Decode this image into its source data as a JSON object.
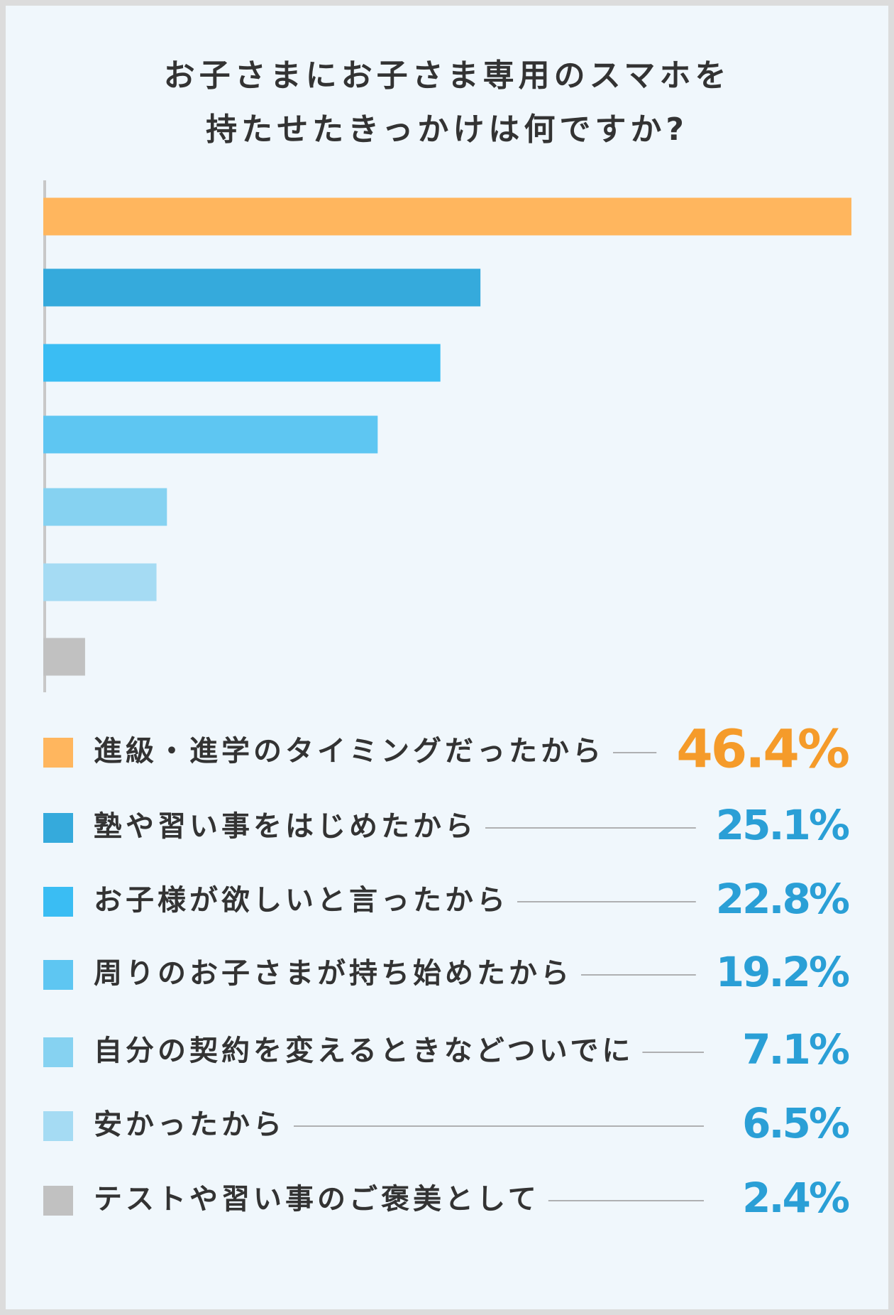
{
  "chart_data": {
    "type": "bar",
    "orientation": "horizontal",
    "title": [
      "お子さまにお子さま専用のスマホを",
      "持たせたきっかけは何ですか?"
    ],
    "categories": [
      "進級・進学のタイミングだったから",
      "塾や習い事をはじめたから",
      "お子様が欲しいと言ったから",
      "周りのお子さまが持ち始めたから",
      "自分の契約を変えるときなどついでに",
      "安かったから",
      "テストや習い事のご褒美として"
    ],
    "values": [
      46.4,
      25.1,
      22.8,
      19.2,
      7.1,
      6.5,
      2.4
    ],
    "value_labels": [
      "46.4%",
      "25.1%",
      "22.8%",
      "19.2%",
      "7.1%",
      "6.5%",
      "2.4%"
    ],
    "colors": [
      "#ffb65e",
      "#35aadc",
      "#3abdf3",
      "#5ec6f2",
      "#86d2f1",
      "#a5dbf3",
      "#c1c1c1"
    ],
    "label_colors": [
      "#f59b2a",
      "#2a9fd6",
      "#2a9fd6",
      "#2a9fd6",
      "#2a9fd6",
      "#2a9fd6",
      "#2a9fd6"
    ],
    "xlim": [
      0,
      46.4
    ]
  }
}
